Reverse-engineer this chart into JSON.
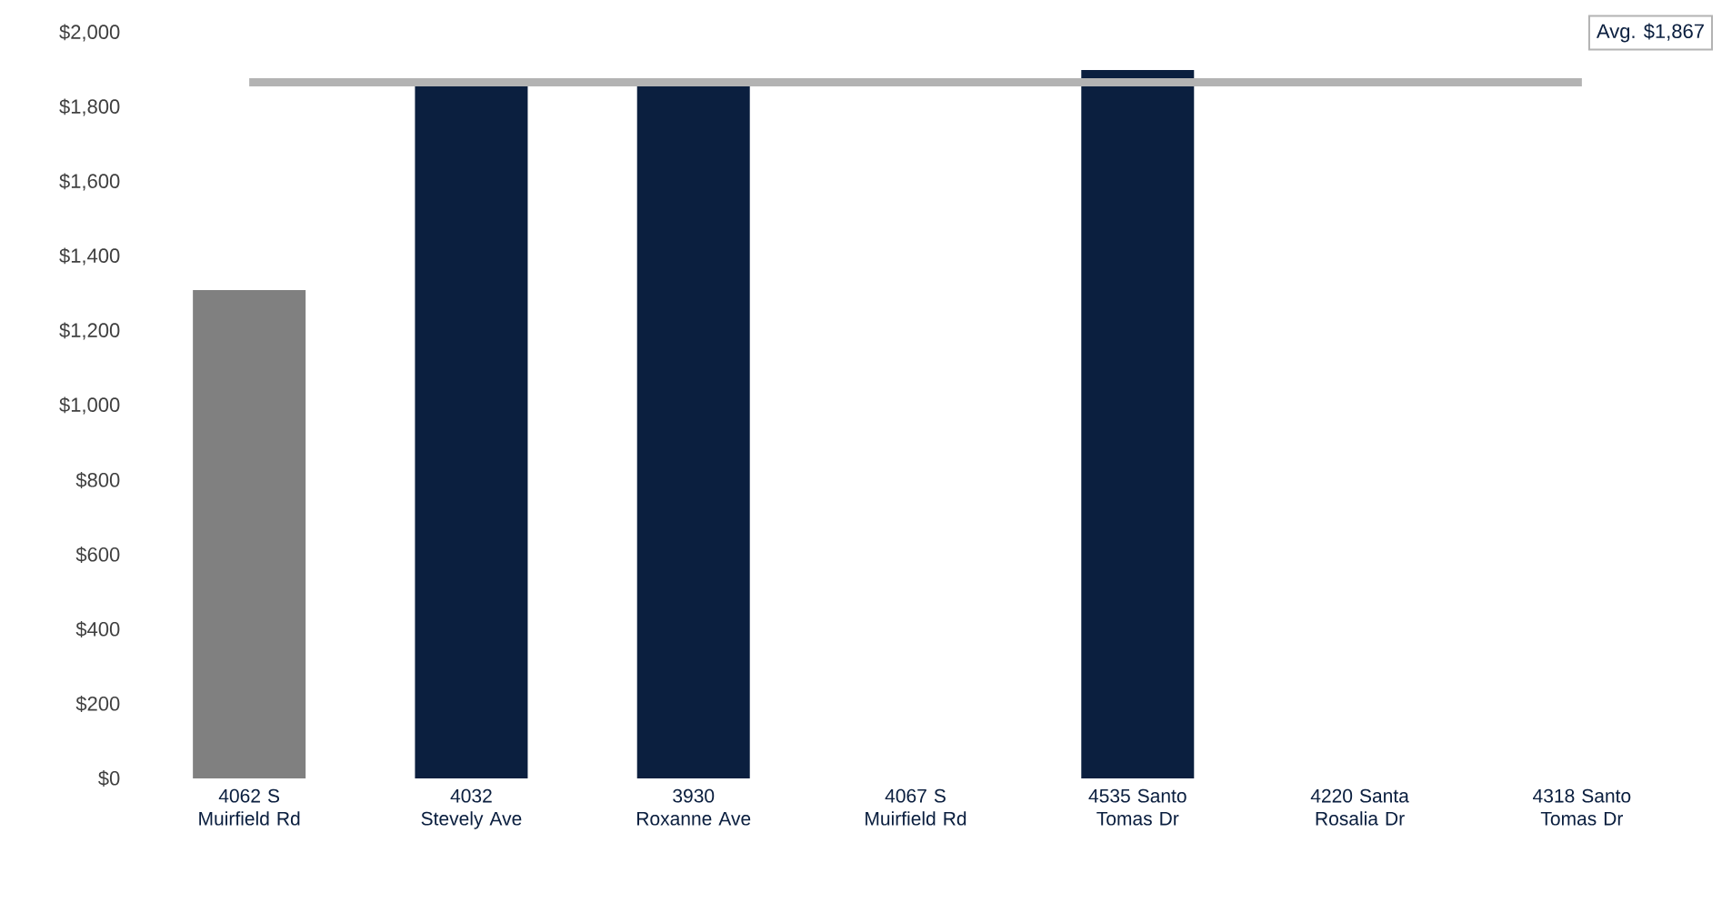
{
  "chart_data": {
    "type": "bar",
    "categories": [
      "4062 S Muirfield Rd",
      "4032 Stevely Ave",
      "3930 Roxanne Ave",
      "4067 S Muirfield Rd",
      "4535 Santo Tomas Dr",
      "4220 Santa Rosalia Dr",
      "4318 Santo Tomas Dr"
    ],
    "values": [
      1310,
      1860,
      1860,
      null,
      1900,
      null,
      null
    ],
    "colors": [
      "#808080",
      "#0b1f3f",
      "#0b1f3f",
      "#0b1f3f",
      "#0b1f3f",
      "#0b1f3f",
      "#0b1f3f"
    ],
    "ylim": [
      0,
      2000
    ],
    "yticks": [
      {
        "value": 0,
        "label": "$0"
      },
      {
        "value": 200,
        "label": "$200"
      },
      {
        "value": 400,
        "label": "$400"
      },
      {
        "value": 600,
        "label": "$600"
      },
      {
        "value": 800,
        "label": "$800"
      },
      {
        "value": 1000,
        "label": "$1,000"
      },
      {
        "value": 1200,
        "label": "$1,200"
      },
      {
        "value": 1400,
        "label": "$1,400"
      },
      {
        "value": 1600,
        "label": "$1,600"
      },
      {
        "value": 1800,
        "label": "$1,800"
      },
      {
        "value": 2000,
        "label": "$2,000"
      }
    ],
    "ref_lines": [
      {
        "axis": "y",
        "value": 1867,
        "label": "Avg. $1,867",
        "color": "#b3b3b3"
      }
    ]
  }
}
